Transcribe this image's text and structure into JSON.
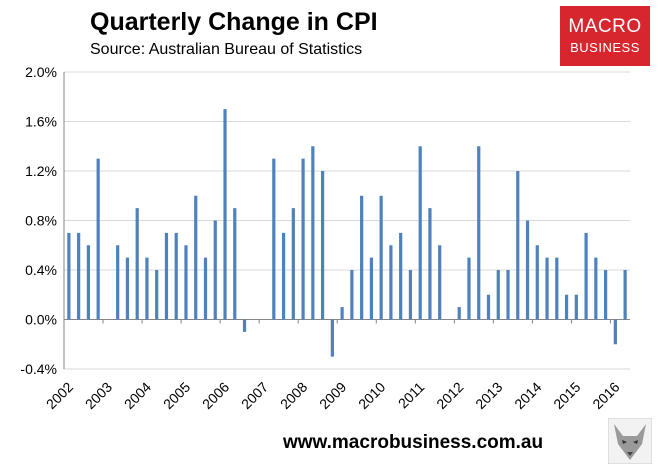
{
  "header": {
    "title": "Quarterly Change in CPI",
    "subtitle": "Source: Australian Bureau of Statistics"
  },
  "logo": {
    "line1": "MACRO",
    "line2": "BUSINESS",
    "color": "#d8262e"
  },
  "footer": {
    "url": "www.macrobusiness.com.au"
  },
  "icons": {
    "wolf": "wolf-logo-icon"
  },
  "colors": {
    "bar": "#4f81bd",
    "grid": "#d9d9d9",
    "axis": "#868686"
  },
  "chart_data": {
    "type": "bar",
    "title": "Quarterly Change in CPI",
    "xlabel": "",
    "ylabel": "",
    "ylim": [
      -0.4,
      2.0
    ],
    "grid": true,
    "yticks": [
      "-0.4%",
      "0.0%",
      "0.4%",
      "0.8%",
      "1.2%",
      "1.6%",
      "2.0%"
    ],
    "years": [
      "2002",
      "2003",
      "2004",
      "2005",
      "2006",
      "2007",
      "2008",
      "2009",
      "2010",
      "2011",
      "2012",
      "2013",
      "2014",
      "2015",
      "2016"
    ],
    "series": [
      {
        "name": "Quarterly Change in CPI (%)",
        "values": [
          0.7,
          0.7,
          0.6,
          1.3,
          0.0,
          0.6,
          0.5,
          0.9,
          0.5,
          0.4,
          0.7,
          0.7,
          0.6,
          1.0,
          0.5,
          0.8,
          1.7,
          0.9,
          -0.1,
          0.0,
          0.0,
          1.3,
          0.7,
          0.9,
          1.3,
          1.4,
          1.2,
          -0.3,
          0.1,
          0.4,
          1.0,
          0.5,
          1.0,
          0.6,
          0.7,
          0.4,
          1.4,
          0.9,
          0.6,
          0.0,
          0.1,
          0.5,
          1.4,
          0.2,
          0.4,
          0.4,
          1.2,
          0.8,
          0.6,
          0.5,
          0.5,
          0.2,
          0.2,
          0.7,
          0.5,
          0.4,
          -0.2,
          0.4
        ]
      }
    ]
  }
}
